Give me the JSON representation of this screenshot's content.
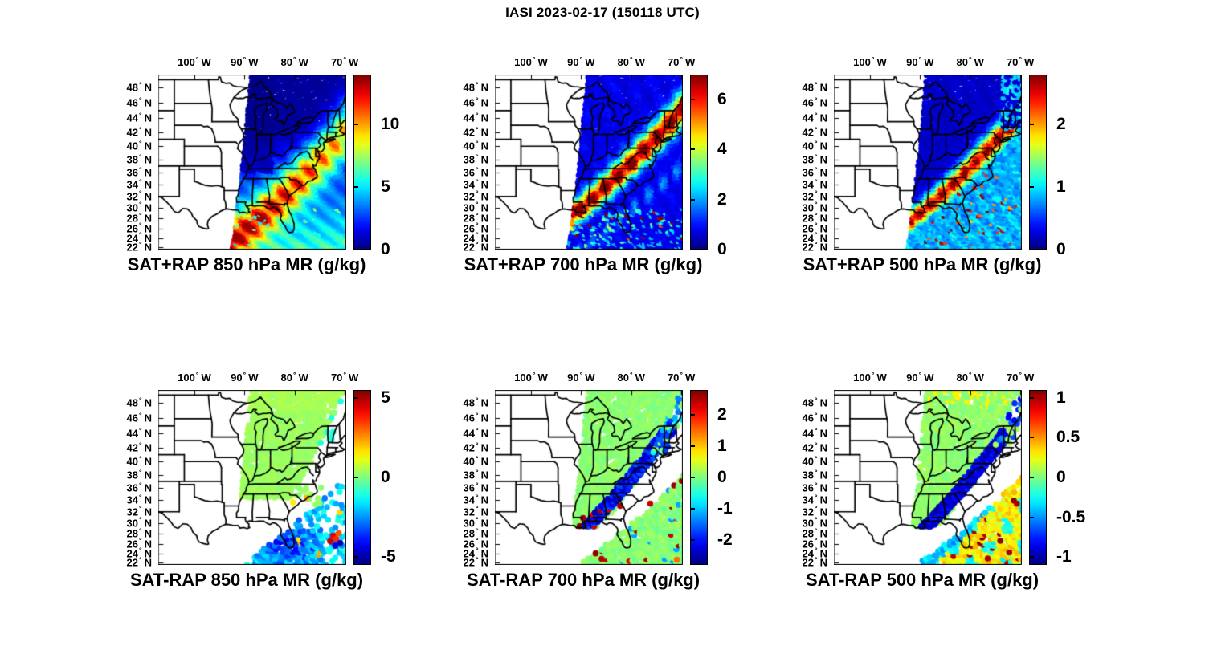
{
  "figure": {
    "title": "IASI 2023-02-17 (150118 UTC)"
  },
  "axes": {
    "x_tick_labels": [
      "100° W",
      "90° W",
      "80° W",
      "70° W"
    ],
    "x_tick_lons": [
      -100,
      -90,
      -80,
      -70
    ],
    "y_tick_labels": [
      "48° N",
      "46° N",
      "44° N",
      "42° N",
      "40° N",
      "38° N",
      "36° N",
      "34° N",
      "32° N",
      "30° N",
      "28° N",
      "26° N",
      "24° N",
      "22° N"
    ],
    "y_tick_lats": [
      48,
      46,
      44,
      42,
      40,
      38,
      36,
      34,
      32,
      30,
      28,
      26,
      24,
      22
    ]
  },
  "panels": [
    {
      "title": "SAT+RAP 850 hPa MR (g/kg)",
      "row": 0,
      "col": 0,
      "field": "sum850",
      "colorbar": {
        "tick_values": [
          0,
          5,
          10
        ],
        "tick_labels": [
          "0",
          "5",
          "10"
        ],
        "min": 0,
        "max": 14
      }
    },
    {
      "title": "SAT+RAP 700 hPa MR (g/kg)",
      "row": 0,
      "col": 1,
      "field": "sum700",
      "colorbar": {
        "tick_values": [
          0,
          2,
          4,
          6
        ],
        "tick_labels": [
          "0",
          "2",
          "4",
          "6"
        ],
        "min": 0,
        "max": 7
      }
    },
    {
      "title": "SAT+RAP 500 hPa MR (g/kg)",
      "row": 0,
      "col": 2,
      "field": "sum500",
      "colorbar": {
        "tick_values": [
          0,
          1,
          2
        ],
        "tick_labels": [
          "0",
          "1",
          "2"
        ],
        "min": 0,
        "max": 2.8
      }
    },
    {
      "title": "SAT-RAP 850 hPa MR (g/kg)",
      "row": 1,
      "col": 0,
      "field": "dif850",
      "colorbar": {
        "tick_values": [
          -5,
          0,
          5
        ],
        "tick_labels": [
          "-5",
          "0",
          "5"
        ],
        "min": -5.5,
        "max": 5.5
      }
    },
    {
      "title": "SAT-RAP 700 hPa MR (g/kg)",
      "row": 1,
      "col": 1,
      "field": "dif700",
      "colorbar": {
        "tick_values": [
          -2,
          -1,
          0,
          1,
          2
        ],
        "tick_labels": [
          "-2",
          "-1",
          "0",
          "1",
          "2"
        ],
        "min": -2.8,
        "max": 2.8
      }
    },
    {
      "title": "SAT-RAP 500 hPa MR (g/kg)",
      "row": 1,
      "col": 2,
      "field": "dif500",
      "colorbar": {
        "tick_values": [
          -1,
          -0.5,
          0,
          0.5,
          1
        ],
        "tick_labels": [
          "-1",
          "-0.5",
          "0",
          "0.5",
          "1"
        ],
        "min": -1.1,
        "max": 1.1
      }
    }
  ],
  "chart_data": [
    {
      "type": "heatmap",
      "title": "SAT+RAP 850 hPa MR (g/kg)",
      "variable": "850 hPa mixing ratio",
      "units": "g/kg",
      "colormap": "jet",
      "colorbar_ticks": [
        0,
        5,
        10
      ],
      "value_range": [
        0,
        14
      ],
      "lon_range_deg_W": [
        107,
        70
      ],
      "lat_range_deg_N": [
        21.5,
        50
      ],
      "swath": "IASI satellite swath east of ~92-89°W (left edge slants NE), western US has no data",
      "pattern": "0-2 g/kg (dark blue) north of ~38N; 8-12 g/kg (orange-red) over the Gulf coast, Deep South and ocean south of ~32N; 4-7 g/kg (green-cyan) over the western Atlantic and northeast coast"
    },
    {
      "type": "heatmap",
      "title": "SAT+RAP 700 hPa MR (g/kg)",
      "variable": "700 hPa mixing ratio",
      "units": "g/kg",
      "colormap": "jet",
      "colorbar_ticks": [
        0,
        2,
        4,
        6
      ],
      "value_range": [
        0,
        7
      ],
      "lon_range_deg_W": [
        107,
        70
      ],
      "lat_range_deg_N": [
        21.5,
        50
      ],
      "swath": "same IASI swath as 850 hPa panel",
      "pattern": "mostly 0-1.5 g/kg (dark blue); narrow 5-7 g/kg (red-orange) moist band from Louisiana northeast along the Appalachians and east coast to New England; scattered 1-3 g/kg cyan over the Gulf"
    },
    {
      "type": "heatmap",
      "title": "SAT+RAP 500 hPa MR (g/kg)",
      "variable": "500 hPa mixing ratio",
      "units": "g/kg",
      "colormap": "jet",
      "colorbar_ticks": [
        0,
        1,
        2
      ],
      "value_range": [
        0,
        2.8
      ],
      "lon_range_deg_W": [
        107,
        70
      ],
      "lat_range_deg_N": [
        21.5,
        50
      ],
      "swath": "same IASI swath",
      "pattern": "0-0.4 g/kg (dark blue) northwest of the front; 2-2.8 g/kg (red) core over the Carolinas and mid-Atlantic; 0.7-1.2 g/kg (cyan) over the subtropical Atlantic with scattered 2+ g/kg speckles"
    },
    {
      "type": "heatmap",
      "title": "SAT-RAP 850 hPa MR (g/kg)",
      "variable": "850 hPa mixing ratio difference (satellite minus RAP model)",
      "units": "g/kg",
      "colormap": "jet",
      "colorbar_ticks": [
        -5,
        0,
        5
      ],
      "value_range": [
        -5.5,
        5.5
      ],
      "swath": "difference retrieved only over clear areas: northern swath and southern ocean; blank elsewhere",
      "pattern": "near zero (~+0.3, green) over the northern swath; -2 to -5 (blue) over the Gulf and subtropical Atlantic; small +3 to +5 (red) cluster near 27N 72W"
    },
    {
      "type": "heatmap",
      "title": "SAT-RAP 700 hPa MR (g/kg)",
      "variable": "700 hPa mixing ratio difference (satellite minus RAP model)",
      "units": "g/kg",
      "colormap": "jet",
      "colorbar_ticks": [
        -2,
        -1,
        0,
        1,
        2
      ],
      "value_range": [
        -2.8,
        2.8
      ],
      "swath": "north swath, frontal band, and southeast ocean",
      "pattern": "near zero (green) north and over the SE ocean; -1.5 to -2.5 (dark blue) band along the front from the Gulf coast to New England; scattered ±2.5 (red/dark-red) speckles near the Gulf"
    },
    {
      "type": "heatmap",
      "title": "SAT-RAP 500 hPa MR (g/kg)",
      "variable": "500 hPa mixing ratio difference (satellite minus RAP model)",
      "units": "g/kg",
      "colormap": "jet",
      "colorbar_ticks": [
        -1,
        -0.5,
        0,
        0.5,
        1
      ],
      "value_range": [
        -1.1,
        1.1
      ],
      "swath": "north swath, frontal band, and southeast ocean",
      "pattern": "near zero (green) north; -0.6 to -1 (blue) band along the front; +0.2 to +0.6 (yellow-orange) over the subtropical Atlantic with scattered ±1 dark-red/blue speckles"
    }
  ]
}
